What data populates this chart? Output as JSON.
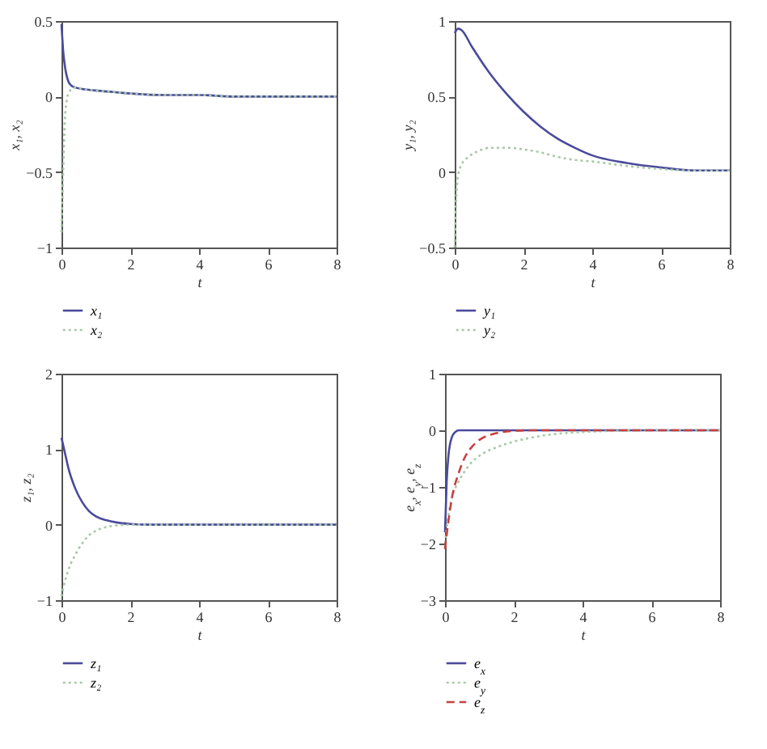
{
  "chart_data": [
    {
      "type": "line",
      "xlabel": "t",
      "ylabel": "x₁, x₂",
      "xlim": [
        0,
        8
      ],
      "xticks": [
        0,
        2,
        4,
        6,
        8
      ],
      "ylim": [
        -1,
        0.5
      ],
      "yticks": [
        -1,
        -0.5,
        0,
        0.5
      ],
      "legend": "bottom",
      "series": [
        {
          "name": "x₁",
          "color": "#4a4a9c",
          "line_style": "solid",
          "x": [
            0,
            0.05,
            0.1,
            0.2,
            0.3,
            0.4,
            0.6,
            1,
            1.5,
            2,
            3,
            4,
            5,
            6,
            7,
            8
          ],
          "values": [
            0.48,
            0.3,
            0.2,
            0.1,
            0.07,
            0.06,
            0.05,
            0.04,
            0.03,
            0.02,
            0.01,
            0.01,
            0,
            0,
            0,
            0
          ]
        },
        {
          "name": "x₂",
          "color": "#a8c8a8",
          "line_style": "dotted",
          "x": [
            0,
            0.05,
            0.1,
            0.15,
            0.2,
            0.3,
            0.4,
            0.6,
            1,
            1.5,
            2,
            3,
            4,
            5,
            6,
            7,
            8
          ],
          "values": [
            -0.9,
            -0.5,
            -0.15,
            -0.03,
            0.02,
            0.05,
            0.06,
            0.05,
            0.04,
            0.03,
            0.02,
            0.01,
            0.01,
            0,
            0,
            0,
            0
          ]
        }
      ]
    },
    {
      "type": "line",
      "xlabel": "t",
      "ylabel": "y₁, y₂",
      "xlim": [
        0,
        8
      ],
      "xticks": [
        0,
        2,
        4,
        6,
        8
      ],
      "ylim": [
        -0.5,
        1
      ],
      "yticks": [
        -0.5,
        0,
        0.5,
        1
      ],
      "legend": "bottom",
      "series": [
        {
          "name": "y₁",
          "color": "#4a4a9c",
          "line_style": "solid",
          "x": [
            0,
            0.1,
            0.2,
            0.5,
            1,
            1.5,
            2,
            2.5,
            3,
            3.5,
            4,
            5,
            6,
            7,
            8
          ],
          "values": [
            0.92,
            0.95,
            0.94,
            0.83,
            0.66,
            0.52,
            0.4,
            0.3,
            0.22,
            0.16,
            0.11,
            0.06,
            0.03,
            0.01,
            0.01
          ]
        },
        {
          "name": "y₂",
          "color": "#a8c8a8",
          "line_style": "dotted",
          "x": [
            0,
            0.05,
            0.1,
            0.2,
            0.4,
            0.7,
            1,
            1.3,
            1.6,
            2,
            2.5,
            3,
            3.5,
            4,
            5,
            6,
            7,
            8
          ],
          "values": [
            -0.5,
            -0.15,
            -0.02,
            0.05,
            0.1,
            0.14,
            0.16,
            0.16,
            0.16,
            0.15,
            0.13,
            0.1,
            0.08,
            0.07,
            0.04,
            0.02,
            0.01,
            0.01
          ]
        }
      ]
    },
    {
      "type": "line",
      "xlabel": "t",
      "ylabel": "z₁, z₂",
      "xlim": [
        0,
        8
      ],
      "xticks": [
        0,
        2,
        4,
        6,
        8
      ],
      "ylim": [
        -1,
        2
      ],
      "yticks": [
        -1,
        0,
        1,
        2
      ],
      "legend": "bottom",
      "series": [
        {
          "name": "z₁",
          "color": "#4a4a9c",
          "line_style": "solid",
          "x": [
            0,
            0.1,
            0.2,
            0.4,
            0.6,
            0.8,
            1,
            1.3,
            1.6,
            2,
            2.5,
            8
          ],
          "values": [
            1.15,
            0.95,
            0.75,
            0.48,
            0.3,
            0.18,
            0.11,
            0.06,
            0.03,
            0.01,
            0,
            0
          ]
        },
        {
          "name": "z₂",
          "color": "#a8c8a8",
          "line_style": "dotted",
          "x": [
            0,
            0.1,
            0.2,
            0.4,
            0.6,
            0.8,
            1,
            1.3,
            1.6,
            2,
            8
          ],
          "values": [
            -0.95,
            -0.75,
            -0.6,
            -0.4,
            -0.25,
            -0.14,
            -0.08,
            -0.03,
            -0.01,
            0,
            0
          ]
        }
      ]
    },
    {
      "type": "line",
      "xlabel": "t",
      "ylabel": "e$_{x}$, e$_{y}$, e$_{z}$",
      "xlim": [
        0,
        8
      ],
      "xticks": [
        0,
        2,
        4,
        6,
        8
      ],
      "ylim": [
        -3,
        1
      ],
      "yticks": [
        -3,
        -2,
        -1,
        0,
        1
      ],
      "legend": "bottom",
      "series": [
        {
          "name": "e$_{x}$",
          "color": "#4a4a9c",
          "line_style": "solid",
          "x": [
            0,
            0.05,
            0.1,
            0.2,
            0.3,
            0.4,
            8
          ],
          "values": [
            -1.8,
            -0.9,
            -0.45,
            -0.12,
            -0.03,
            0,
            0
          ]
        },
        {
          "name": "e$_{y}$",
          "color": "#a8c8a8",
          "line_style": "dotted",
          "x": [
            0,
            0.1,
            0.2,
            0.4,
            0.6,
            0.8,
            1,
            1.5,
            2,
            2.5,
            3,
            4,
            5,
            6,
            8
          ],
          "values": [
            -2,
            -1.5,
            -1.2,
            -0.9,
            -0.7,
            -0.55,
            -0.45,
            -0.3,
            -0.2,
            -0.13,
            -0.08,
            -0.03,
            -0.01,
            0,
            0
          ]
        },
        {
          "name": "e$_{z}$",
          "color": "#c84040",
          "line_style": "dashed",
          "x": [
            0,
            0.1,
            0.2,
            0.4,
            0.6,
            0.8,
            1,
            1.5,
            2,
            2.5,
            8
          ],
          "values": [
            -2.1,
            -1.6,
            -1.2,
            -0.75,
            -0.45,
            -0.28,
            -0.17,
            -0.05,
            -0.01,
            0,
            0
          ]
        }
      ]
    }
  ]
}
